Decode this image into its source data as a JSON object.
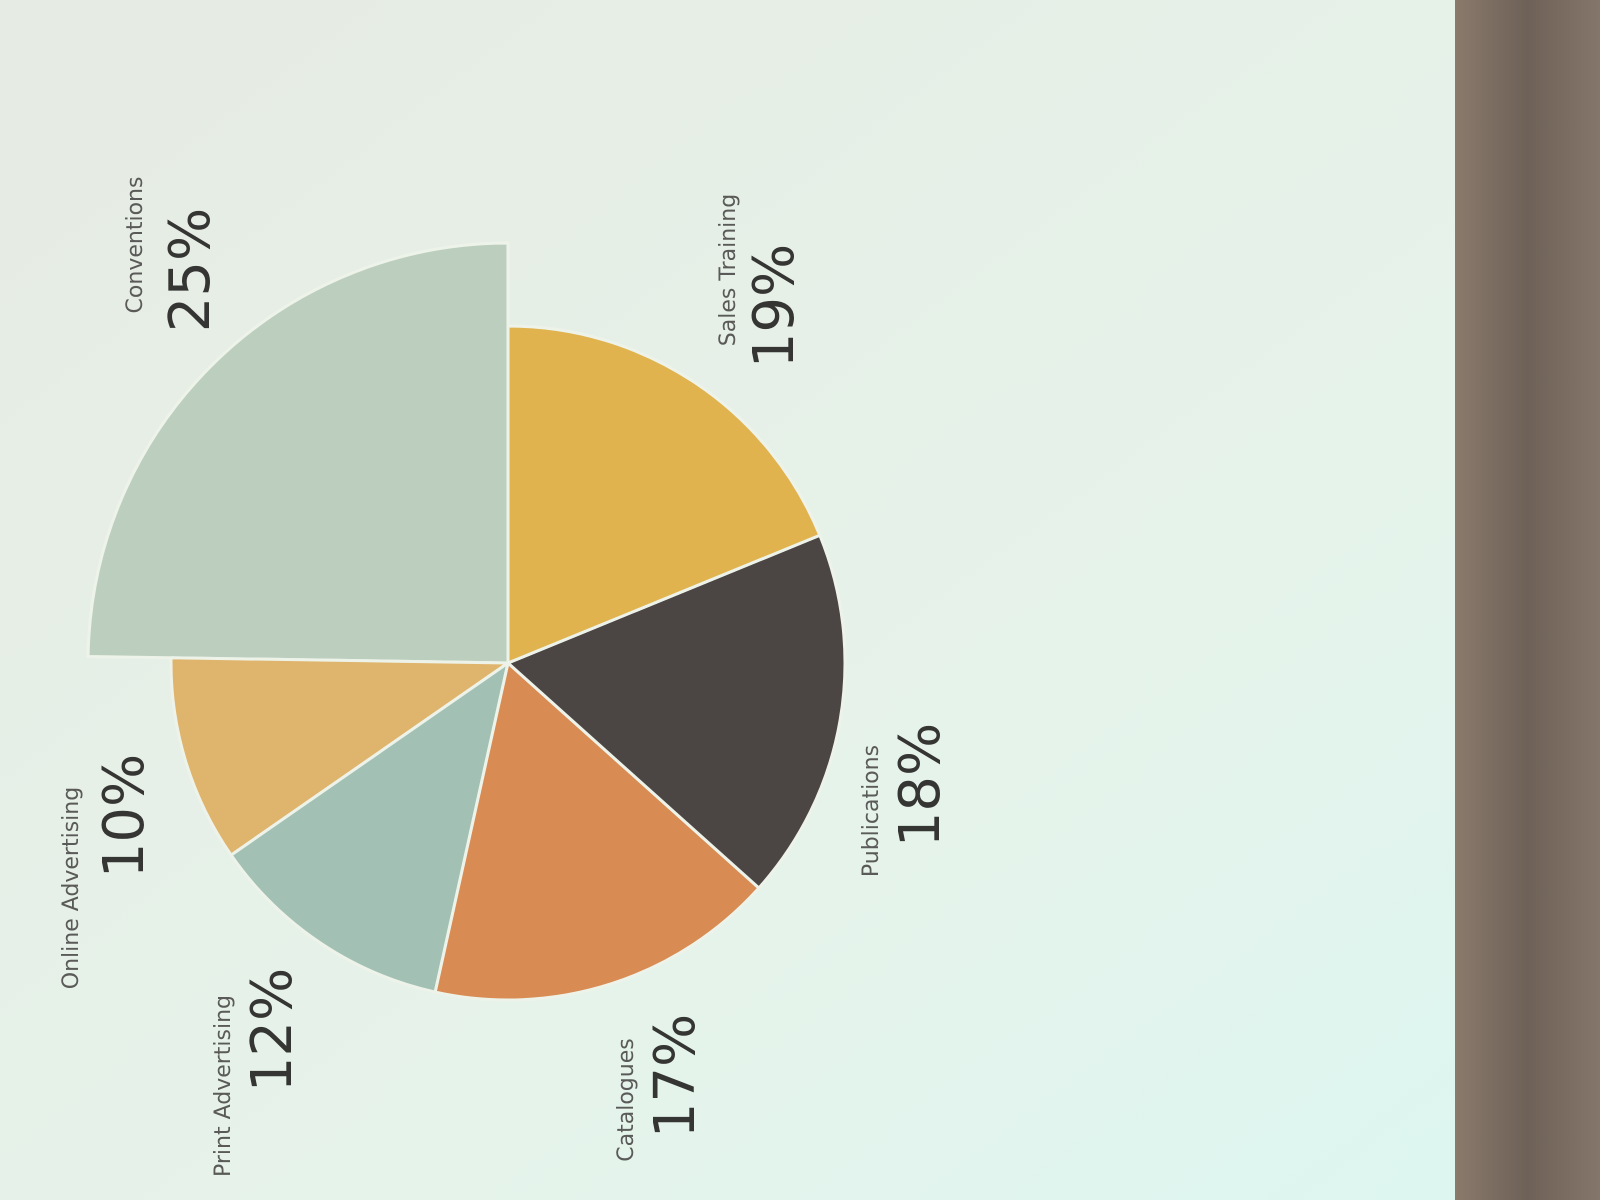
{
  "chart_data": {
    "type": "pie",
    "categories": [
      "Conventions",
      "Online Advertising",
      "Print Advertising",
      "Catalogues",
      "Publications",
      "Sales Training"
    ],
    "values": [
      25,
      10,
      12,
      17,
      18,
      19
    ],
    "value_labels": [
      "25%",
      "10%",
      "12%",
      "17%",
      "18%",
      "19%"
    ],
    "colors": [
      "#bccfbf",
      "#dfb46c",
      "#a2c1b4",
      "#d88b53",
      "#4b4543",
      "#e0b34e"
    ]
  }
}
